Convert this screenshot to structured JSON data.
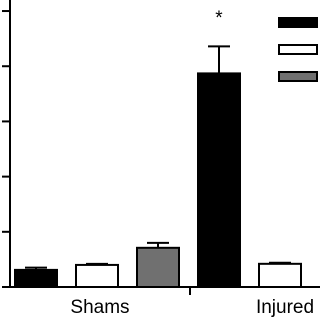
{
  "chart_data": {
    "type": "bar",
    "categories": [
      "Shams",
      "Injured"
    ],
    "series": [
      {
        "color": "#000000",
        "values": [
          0.31,
          3.87
        ],
        "errors": [
          0.04,
          0.49
        ]
      },
      {
        "color": "#ffffff",
        "values": [
          0.4,
          0.42
        ],
        "errors": [
          0.02,
          0.02
        ]
      },
      {
        "color": "#707070",
        "values": [
          0.71,
          null
        ],
        "errors": [
          0.09,
          null
        ]
      }
    ],
    "ylim": [
      0,
      5.2
    ],
    "yticks": [
      0,
      1,
      2,
      3,
      4,
      5
    ],
    "annotation": "*"
  }
}
